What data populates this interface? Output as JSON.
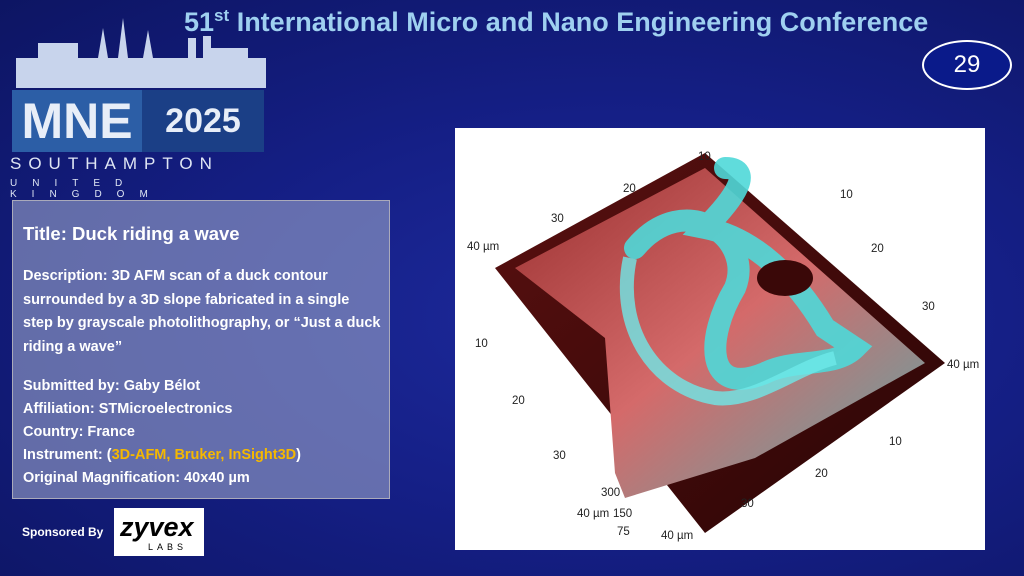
{
  "header": {
    "title": {
      "number": "51",
      "suffix": "st",
      "text": "International Micro and Nano Engineering Conference"
    },
    "slide_number": "29"
  },
  "logo": {
    "acronym": "MNE",
    "year": "2025",
    "city": "SOUTHAMPTON",
    "country": "UNITED KINGDOM"
  },
  "entry": {
    "title": "Title: Duck riding a wave",
    "description": "Description: 3D AFM scan of a duck contour surrounded by a 3D slope fabricated in a single step by grayscale photolithography, or “Just a duck riding a wave”",
    "submitted_by": "Submitted by: Gaby Bélot",
    "affiliation": "Affiliation: STMicroelectronics",
    "country": "Country: France",
    "instrument": {
      "label": "Instrument: (",
      "value": "3D-AFM, Bruker, InSight3D",
      "close": ")"
    },
    "magnification": "Original Magnification: 40x40 µm"
  },
  "sponsor": {
    "label": "Sponsored By",
    "name": "zyvex",
    "sub": "LABS"
  },
  "image": {
    "labels": [
      "10",
      "20",
      "30",
      "40 µm",
      "10",
      "20",
      "30",
      "40 µm",
      "10",
      "20",
      "30",
      "40 µm",
      "10",
      "20",
      "30",
      "40 µm",
      "300",
      "150",
      "75"
    ]
  }
}
